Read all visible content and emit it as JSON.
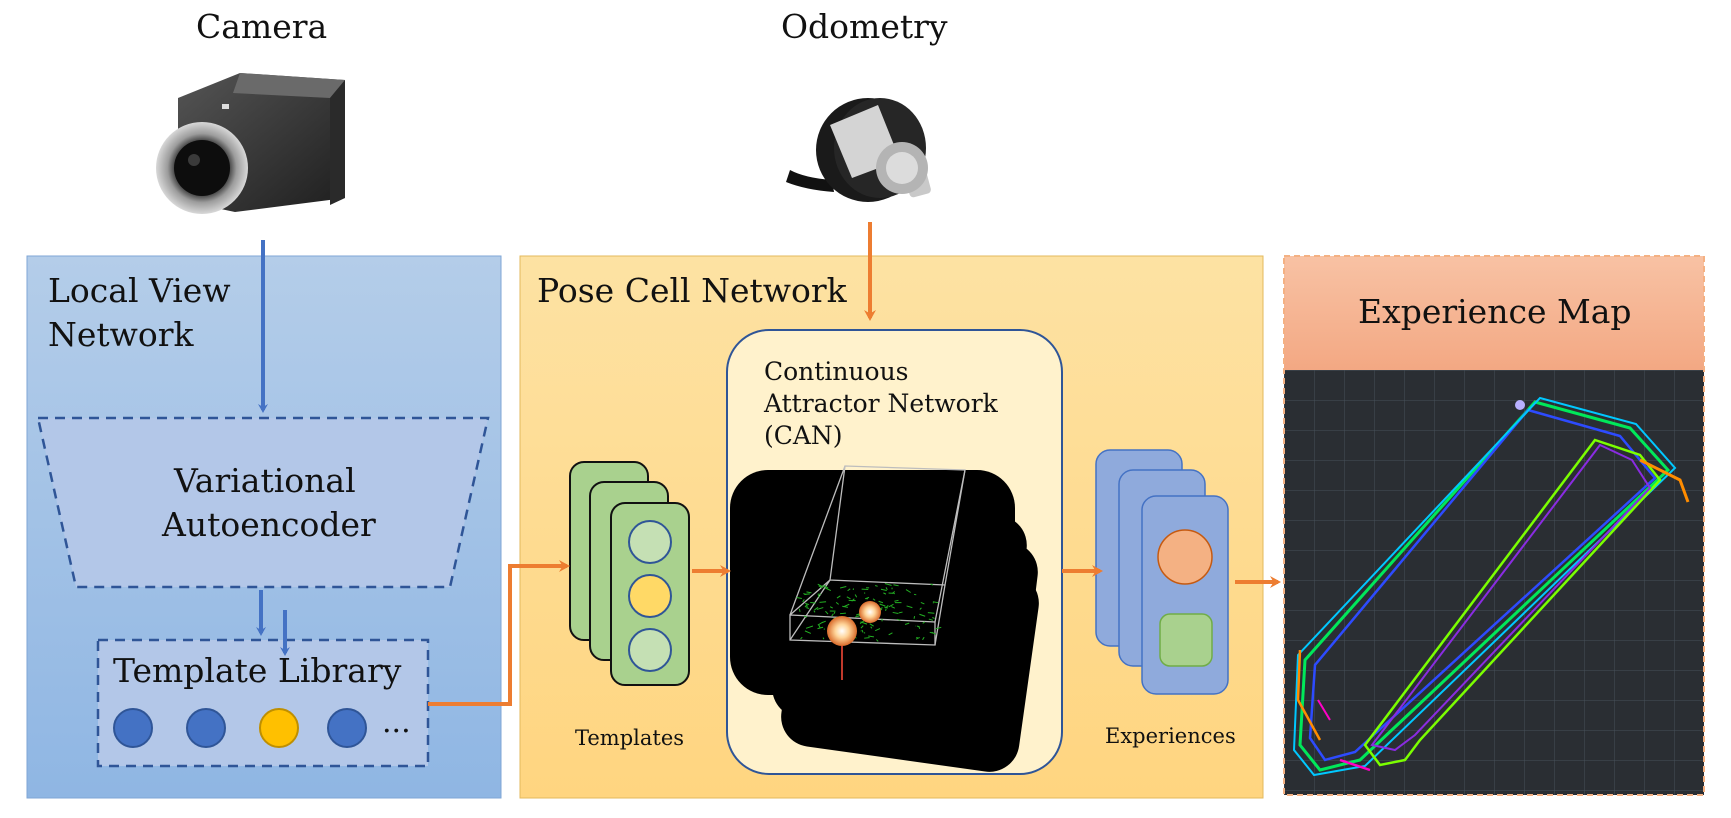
{
  "inputs": {
    "camera_label": "Camera",
    "odometry_label": "Odometry"
  },
  "local_view": {
    "title_line1": "Local View",
    "title_line2": "Network",
    "vae_line1": "Variational",
    "vae_line2": "Autoencoder",
    "library_label": "Template Library",
    "ellipsis": "...",
    "circle_colors": [
      "#4472c4",
      "#4472c4",
      "#ffc000",
      "#4472c4"
    ]
  },
  "pose_cell": {
    "title": "Pose Cell Network",
    "can_line1": "Continuous",
    "can_line2": "Attractor Network",
    "can_line3": "(CAN)",
    "templates_label": "Templates",
    "experiences_label": "Experiences"
  },
  "experience_map": {
    "title": "Experience Map"
  },
  "colors": {
    "blue_arrow": "#4472c4",
    "orange_arrow": "#ed7d31",
    "local_view_bg": "#9dc3e6",
    "pose_cell_bg": "#ffd98e",
    "experience_header": "#f4b183",
    "map_bg": "#2a2e33"
  }
}
